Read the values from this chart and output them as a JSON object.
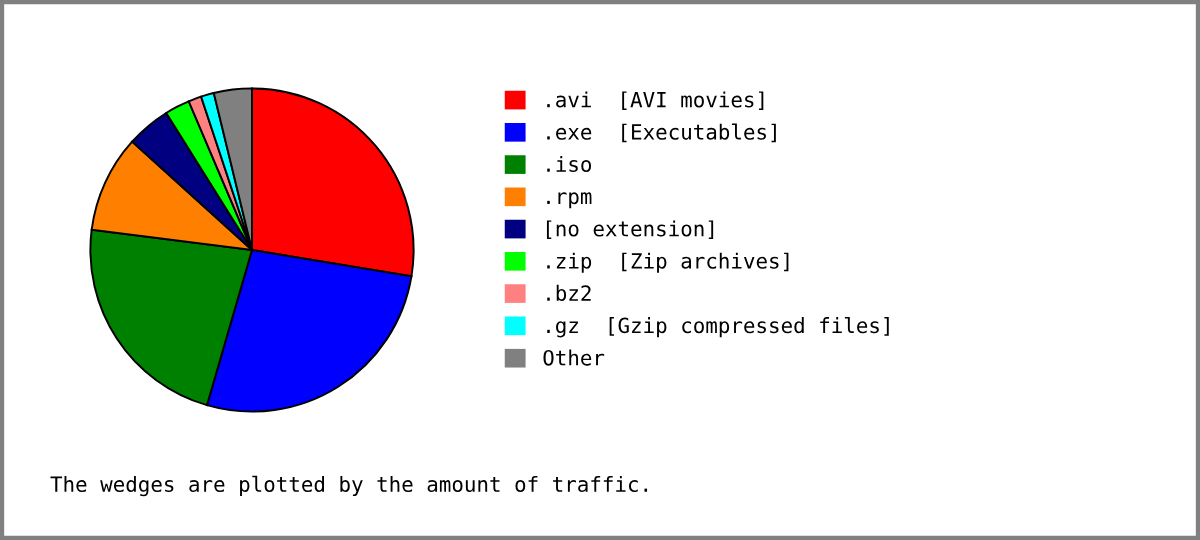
{
  "chart_data": {
    "type": "pie",
    "categories": [
      ".avi  [AVI movies]",
      ".exe  [Executables]",
      ".iso",
      ".rpm",
      "[no extension]",
      ".zip  [Zip archives]",
      ".bz2",
      ".gz  [Gzip compressed files]",
      "Other"
    ],
    "values": [
      27.6,
      26.9,
      22.5,
      9.7,
      4.4,
      2.5,
      1.3,
      1.3,
      3.8
    ],
    "colors": [
      "#ff0000",
      "#0000ff",
      "#008000",
      "#ff8000",
      "#000080",
      "#00ff00",
      "#ff8080",
      "#00ffff",
      "#808080"
    ],
    "legend": "right",
    "annotations": [
      "The wedges are plotted by the amount of traffic."
    ]
  }
}
